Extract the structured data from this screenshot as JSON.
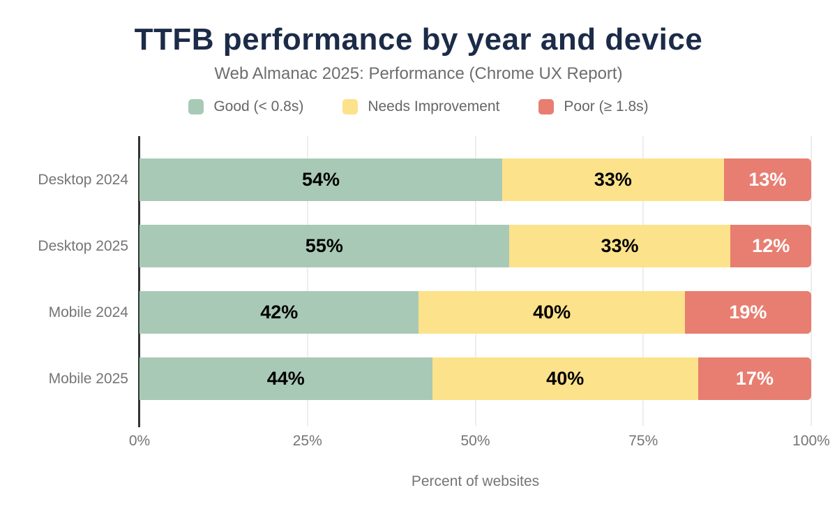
{
  "chart_data": {
    "type": "bar",
    "orientation": "horizontal",
    "stacked": true,
    "title": "TTFB performance by year and device",
    "subtitle": "Web Almanac 2025: Performance (Chrome UX Report)",
    "xlabel": "Percent of websites",
    "categories": [
      "Desktop 2024",
      "Desktop 2025",
      "Mobile 2024",
      "Mobile 2025"
    ],
    "series": [
      {
        "key": "good",
        "name": "Good (< 0.8s)",
        "color": "#a8c9b6",
        "label_color": "#000000",
        "values": [
          54,
          55,
          42,
          44
        ],
        "labels": [
          "54%",
          "55%",
          "42%",
          "44%"
        ]
      },
      {
        "key": "needs-improvement",
        "name": "Needs Improvement",
        "color": "#fce28b",
        "label_color": "#000000",
        "values": [
          33,
          33,
          40,
          40
        ],
        "labels": [
          "33%",
          "33%",
          "40%",
          "40%"
        ]
      },
      {
        "key": "poor",
        "name": "Poor (≥ 1.8s)",
        "color": "#e77e71",
        "label_color": "#ffffff",
        "values": [
          13,
          12,
          19,
          17
        ],
        "labels": [
          "13%",
          "12%",
          "19%",
          "17%"
        ]
      }
    ],
    "x_ticks": [
      "0%",
      "25%",
      "50%",
      "75%",
      "100%"
    ],
    "x_tick_positions": [
      0,
      25,
      50,
      75,
      100
    ],
    "xlim": [
      0,
      100
    ],
    "legend_position": "top",
    "grid": "vertical",
    "colors": {
      "title": "#1c2b47",
      "subtitle": "#6d6d6d",
      "axis_text": "#757575",
      "legend_text": "#666666",
      "gridline": "#ededed",
      "axis_line": "#333333",
      "background": "#ffffff"
    }
  }
}
